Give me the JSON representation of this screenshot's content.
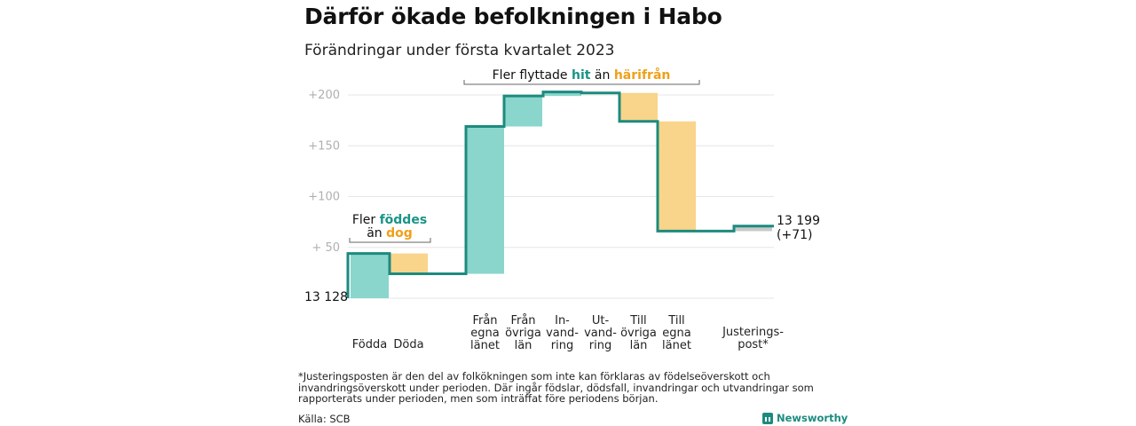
{
  "title": "Därför ökade befolkningen i Habo",
  "subtitle": "Förändringar under första kvartalet 2023",
  "footnote": "*Justeringsposten är den del av folkökningen som inte kan förklaras av födelseöverskott och invandringsöverskott under perioden. Där ingår födslar, dödsfall, invandringar och utvandringar som rapporterats under perioden, men som inträffat före periodens början.",
  "source": "Källa: SCB",
  "brand": "Newsworthy",
  "colors": {
    "increase": "#8ad6cc",
    "decrease": "#f9d48b",
    "adjustment": "#c8c8c8",
    "line": "#1c8b7f",
    "teal_text": "#1a9486",
    "orange_text": "#efa019"
  },
  "annotations": {
    "births": {
      "line1_prefix": "Fler ",
      "line1_highlight": "föddes",
      "line2_prefix": "än ",
      "line2_highlight": "dog"
    },
    "migration": {
      "prefix": "Fler flyttade ",
      "highlight1": "hit",
      "middle": " än ",
      "highlight2": "härifrån"
    }
  },
  "chart_data": {
    "type": "waterfall",
    "start_label": "13 128",
    "end_label": [
      "13 199",
      "(+71)"
    ],
    "y_ticks": [
      "+200",
      "+150",
      "+100",
      "+ 50"
    ],
    "y_tick_values": [
      200,
      150,
      100,
      50
    ],
    "ylim": [
      0,
      210
    ],
    "grid": true,
    "steps": [
      {
        "label": [
          "Födda"
        ],
        "value": 44
      },
      {
        "label": [
          "Döda"
        ],
        "value": -20
      },
      {
        "label": [
          "Från",
          "egna",
          "länet"
        ],
        "value": 145
      },
      {
        "label": [
          "Från",
          "övriga",
          "län"
        ],
        "value": 30
      },
      {
        "label": [
          "In-",
          "vand-",
          "ring"
        ],
        "value": 4
      },
      {
        "label": [
          "Ut-",
          "vand-",
          "ring"
        ],
        "value": -1
      },
      {
        "label": [
          "Till",
          "övriga",
          "län"
        ],
        "value": -28
      },
      {
        "label": [
          "Till",
          "egna",
          "länet"
        ],
        "value": -108
      },
      {
        "label": [
          "Justerings-",
          "post*"
        ],
        "value": 5
      }
    ]
  }
}
